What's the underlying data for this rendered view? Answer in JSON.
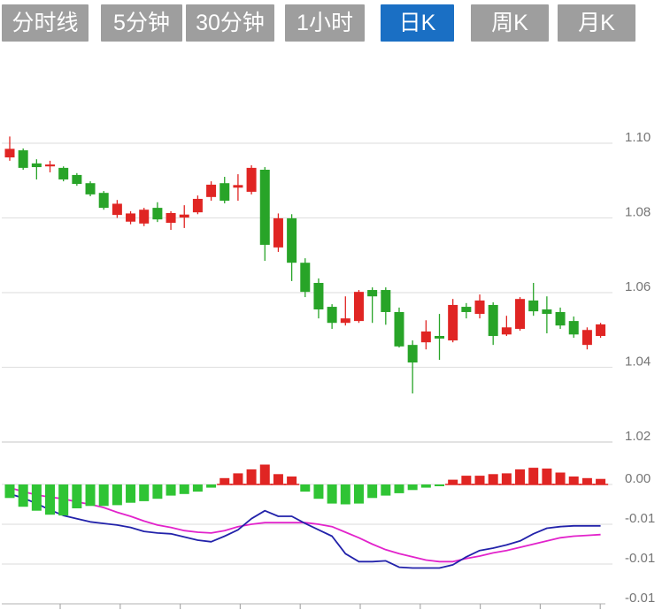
{
  "tabs": [
    {
      "name": "tab-timeline",
      "label": "分时线",
      "active": false
    },
    {
      "name": "tab-5min",
      "label": "5分钟",
      "active": false
    },
    {
      "name": "tab-30min",
      "label": "30分钟",
      "active": false
    },
    {
      "name": "tab-1hour",
      "label": "1小时",
      "active": false
    },
    {
      "name": "tab-day-k",
      "label": "日K",
      "active": true
    },
    {
      "name": "tab-week-k",
      "label": "周K",
      "active": false
    },
    {
      "name": "tab-month-k",
      "label": "月K",
      "active": false
    }
  ],
  "colors": {
    "tab_bg": "#9e9e9e",
    "tab_active_bg": "#1a6fc4",
    "tab_text": "#ffffff",
    "candle_up": "#e02523",
    "candle_down": "#28a428",
    "hist_up": "#e02523",
    "hist_down": "#2fc434",
    "dif_line": "#2222aa",
    "dea_line": "#e223cb",
    "grid": "#e2e2e2",
    "grid_strong": "#d0d0d0",
    "axis_text": "#757575",
    "axis_line": "#cccccc",
    "tick_mark": "#aaaaaa",
    "zero_line_positive": "#e02523"
  },
  "chart_data": {
    "type": "candlestick",
    "title": "",
    "xlabel": "",
    "ylabel": "",
    "legend": [],
    "grid": true,
    "panels": {
      "price": {
        "ylim": [
          1.025,
          1.103
        ],
        "gridline_values": [
          1.1,
          1.08,
          1.06,
          1.04,
          1.02
        ],
        "tick_labels": [
          "1.10",
          "1.08",
          "1.06",
          "1.04",
          "1.02"
        ],
        "tick_position": "right"
      },
      "macd": {
        "ylim": [
          -0.016,
          0.003
        ],
        "gridline_values": [
          0,
          -0.005,
          -0.01,
          -0.015
        ],
        "tick_labels": [
          "0.00",
          "-0.01",
          "-0.01",
          "-0.01"
        ],
        "tick_position": "right"
      }
    },
    "candles_format": [
      "open",
      "high",
      "low",
      "close"
    ],
    "candles": [
      [
        1.0962,
        1.1018,
        1.0953,
        1.0985
      ],
      [
        1.0981,
        1.0986,
        1.0929,
        1.0934
      ],
      [
        1.0946,
        1.0957,
        1.0903,
        1.0936
      ],
      [
        1.0938,
        1.0953,
        1.0922,
        1.0943
      ],
      [
        1.0934,
        1.0938,
        1.0898,
        1.0903
      ],
      [
        1.0915,
        1.092,
        1.0886,
        1.0891
      ],
      [
        1.0893,
        1.0898,
        1.0858,
        1.0863
      ],
      [
        1.0867,
        1.0872,
        1.0822,
        1.0827
      ],
      [
        1.0808,
        1.0848,
        1.08,
        1.0838
      ],
      [
        1.079,
        1.0818,
        1.0783,
        1.0812
      ],
      [
        1.0785,
        1.0827,
        1.0778,
        1.0822
      ],
      [
        1.0827,
        1.0842,
        1.0789,
        1.0796
      ],
      [
        1.0787,
        1.0818,
        1.0768,
        1.0813
      ],
      [
        1.0801,
        1.0834,
        1.0773,
        1.0809
      ],
      [
        1.0815,
        1.086,
        1.081,
        1.0851
      ],
      [
        1.0856,
        1.0898,
        1.0846,
        1.0889
      ],
      [
        1.0893,
        1.091,
        1.0839,
        1.0846
      ],
      [
        1.0881,
        1.0917,
        1.0846,
        1.0888
      ],
      [
        1.087,
        1.0941,
        1.0863,
        1.0934
      ],
      [
        1.0929,
        1.0936,
        1.0685,
        1.0728
      ],
      [
        1.0721,
        1.0812,
        1.0709,
        1.0799
      ],
      [
        1.0799,
        1.081,
        1.0631,
        1.068
      ],
      [
        1.068,
        1.0692,
        1.0588,
        1.0602
      ],
      [
        1.0626,
        1.0638,
        1.0531,
        1.0555
      ],
      [
        1.0562,
        1.0569,
        1.0503,
        1.0519
      ],
      [
        1.0519,
        1.059,
        1.0512,
        1.0531
      ],
      [
        1.0524,
        1.0607,
        1.0519,
        1.0602
      ],
      [
        1.0607,
        1.0614,
        1.0519,
        1.059
      ],
      [
        1.0607,
        1.0614,
        1.0514,
        1.0548
      ],
      [
        1.0548,
        1.056,
        1.0453,
        1.0456
      ],
      [
        1.046,
        1.0472,
        1.033,
        1.0413
      ],
      [
        1.0467,
        1.0526,
        1.0448,
        1.0496
      ],
      [
        1.0484,
        1.0543,
        1.042,
        1.0477
      ],
      [
        1.0472,
        1.0583,
        1.0467,
        1.0567
      ],
      [
        1.0562,
        1.0572,
        1.0531,
        1.0548
      ],
      [
        1.0543,
        1.0595,
        1.0531,
        1.0579
      ],
      [
        1.0567,
        1.0574,
        1.046,
        1.0484
      ],
      [
        1.0488,
        1.0538,
        1.0484,
        1.0507
      ],
      [
        1.0503,
        1.0588,
        1.0498,
        1.0583
      ],
      [
        1.0579,
        1.0626,
        1.0538,
        1.055
      ],
      [
        1.0555,
        1.059,
        1.0491,
        1.0543
      ],
      [
        1.0548,
        1.056,
        1.0503,
        1.0512
      ],
      [
        1.0524,
        1.0536,
        1.0479,
        1.0488
      ],
      [
        1.046,
        1.0507,
        1.0448,
        1.05
      ],
      [
        1.0484,
        1.0519,
        1.0479,
        1.0515
      ]
    ],
    "macd": {
      "histogram": [
        -0.0017,
        -0.0028,
        -0.0033,
        -0.0038,
        -0.0039,
        -0.003,
        -0.0027,
        -0.0027,
        -0.0026,
        -0.0023,
        -0.0021,
        -0.0018,
        -0.0014,
        -0.0012,
        -0.0009,
        -0.0004,
        0.0008,
        0.0014,
        0.0019,
        0.0025,
        0.0013,
        0.001,
        -0.0009,
        -0.0018,
        -0.0024,
        -0.0025,
        -0.0024,
        -0.0017,
        -0.0014,
        -0.0011,
        -0.0007,
        -0.0004,
        -0.0002,
        0.0006,
        0.0011,
        0.0011,
        0.0013,
        0.0014,
        0.0019,
        0.0021,
        0.002,
        0.0015,
        0.001,
        0.0008,
        0.0007
      ],
      "dif": [
        -0.0012,
        -0.0017,
        -0.0024,
        -0.0032,
        -0.0039,
        -0.0043,
        -0.0047,
        -0.0049,
        -0.0051,
        -0.0054,
        -0.0059,
        -0.0061,
        -0.0062,
        -0.0066,
        -0.007,
        -0.0072,
        -0.0065,
        -0.0057,
        -0.0043,
        -0.0033,
        -0.004,
        -0.004,
        -0.0049,
        -0.0057,
        -0.0065,
        -0.0087,
        -0.0097,
        -0.0097,
        -0.0096,
        -0.0104,
        -0.0105,
        -0.0105,
        -0.0105,
        -0.0101,
        -0.0091,
        -0.0083,
        -0.008,
        -0.0076,
        -0.0071,
        -0.0062,
        -0.0055,
        -0.0053,
        -0.0052,
        -0.0052,
        -0.0052
      ],
      "dea": [
        -0.0004,
        -0.0009,
        -0.0013,
        -0.0016,
        -0.0018,
        -0.0022,
        -0.0025,
        -0.0029,
        -0.0035,
        -0.004,
        -0.0046,
        -0.0051,
        -0.0054,
        -0.0058,
        -0.006,
        -0.0061,
        -0.0058,
        -0.0053,
        -0.005,
        -0.0048,
        -0.0048,
        -0.0048,
        -0.0048,
        -0.005,
        -0.0053,
        -0.006,
        -0.0067,
        -0.0075,
        -0.0082,
        -0.0087,
        -0.0091,
        -0.0095,
        -0.0097,
        -0.0097,
        -0.0093,
        -0.009,
        -0.0086,
        -0.0083,
        -0.0079,
        -0.0075,
        -0.0071,
        -0.0067,
        -0.0065,
        -0.0064,
        -0.0063
      ]
    },
    "x_axis": {
      "tick_count": 10,
      "labels": []
    }
  }
}
